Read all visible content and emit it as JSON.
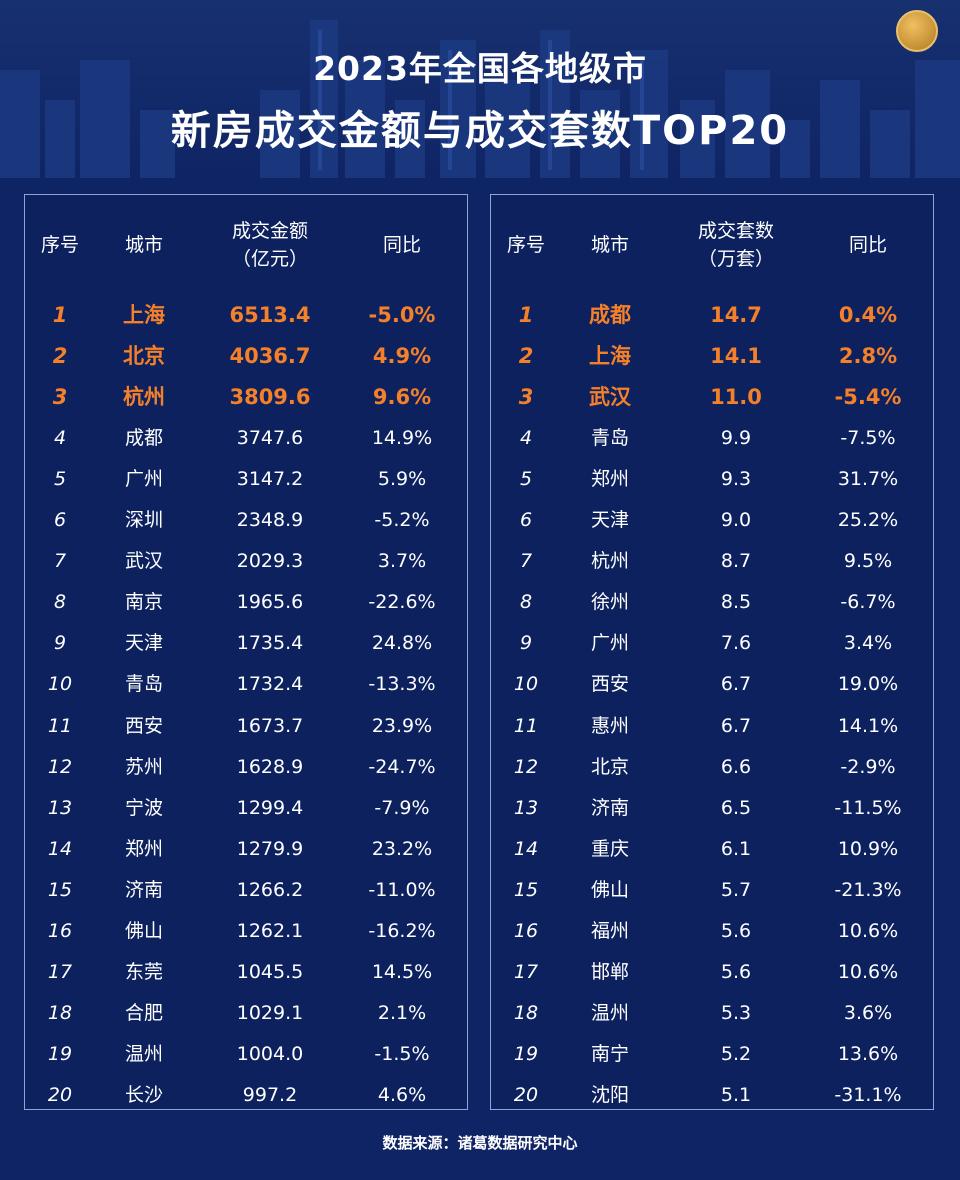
{
  "header": {
    "title_line1": "2023年全国各地级市",
    "title_line2": "新房成交金额与成交套数TOP20"
  },
  "colors": {
    "background": "#0f2464",
    "highlight": "#f5802a",
    "border": "#8fa5d8",
    "text": "#ffffff"
  },
  "left_table": {
    "headers": {
      "rank": "序号",
      "city": "城市",
      "value_line1": "成交金额",
      "value_line2": "（亿元）",
      "yoy": "同比"
    },
    "rows": [
      {
        "rank": "1",
        "city": "上海",
        "value": "6513.4",
        "yoy": "-5.0%"
      },
      {
        "rank": "2",
        "city": "北京",
        "value": "4036.7",
        "yoy": "4.9%"
      },
      {
        "rank": "3",
        "city": "杭州",
        "value": "3809.6",
        "yoy": "9.6%"
      },
      {
        "rank": "4",
        "city": "成都",
        "value": "3747.6",
        "yoy": "14.9%"
      },
      {
        "rank": "5",
        "city": "广州",
        "value": "3147.2",
        "yoy": "5.9%"
      },
      {
        "rank": "6",
        "city": "深圳",
        "value": "2348.9",
        "yoy": "-5.2%"
      },
      {
        "rank": "7",
        "city": "武汉",
        "value": "2029.3",
        "yoy": "3.7%"
      },
      {
        "rank": "8",
        "city": "南京",
        "value": "1965.6",
        "yoy": "-22.6%"
      },
      {
        "rank": "9",
        "city": "天津",
        "value": "1735.4",
        "yoy": "24.8%"
      },
      {
        "rank": "10",
        "city": "青岛",
        "value": "1732.4",
        "yoy": "-13.3%"
      },
      {
        "rank": "11",
        "city": "西安",
        "value": "1673.7",
        "yoy": "23.9%"
      },
      {
        "rank": "12",
        "city": "苏州",
        "value": "1628.9",
        "yoy": "-24.7%"
      },
      {
        "rank": "13",
        "city": "宁波",
        "value": "1299.4",
        "yoy": "-7.9%"
      },
      {
        "rank": "14",
        "city": "郑州",
        "value": "1279.9",
        "yoy": "23.2%"
      },
      {
        "rank": "15",
        "city": "济南",
        "value": "1266.2",
        "yoy": "-11.0%"
      },
      {
        "rank": "16",
        "city": "佛山",
        "value": "1262.1",
        "yoy": "-16.2%"
      },
      {
        "rank": "17",
        "city": "东莞",
        "value": "1045.5",
        "yoy": "14.5%"
      },
      {
        "rank": "18",
        "city": "合肥",
        "value": "1029.1",
        "yoy": "2.1%"
      },
      {
        "rank": "19",
        "city": "温州",
        "value": "1004.0",
        "yoy": "-1.5%"
      },
      {
        "rank": "20",
        "city": "长沙",
        "value": "997.2",
        "yoy": "4.6%"
      }
    ]
  },
  "right_table": {
    "headers": {
      "rank": "序号",
      "city": "城市",
      "value_line1": "成交套数",
      "value_line2": "（万套）",
      "yoy": "同比"
    },
    "rows": [
      {
        "rank": "1",
        "city": "成都",
        "value": "14.7",
        "yoy": "0.4%"
      },
      {
        "rank": "2",
        "city": "上海",
        "value": "14.1",
        "yoy": "2.8%"
      },
      {
        "rank": "3",
        "city": "武汉",
        "value": "11.0",
        "yoy": "-5.4%"
      },
      {
        "rank": "4",
        "city": "青岛",
        "value": "9.9",
        "yoy": "-7.5%"
      },
      {
        "rank": "5",
        "city": "郑州",
        "value": "9.3",
        "yoy": "31.7%"
      },
      {
        "rank": "6",
        "city": "天津",
        "value": "9.0",
        "yoy": "25.2%"
      },
      {
        "rank": "7",
        "city": "杭州",
        "value": "8.7",
        "yoy": "9.5%"
      },
      {
        "rank": "8",
        "city": "徐州",
        "value": "8.5",
        "yoy": "-6.7%"
      },
      {
        "rank": "9",
        "city": "广州",
        "value": "7.6",
        "yoy": "3.4%"
      },
      {
        "rank": "10",
        "city": "西安",
        "value": "6.7",
        "yoy": "19.0%"
      },
      {
        "rank": "11",
        "city": "惠州",
        "value": "6.7",
        "yoy": "14.1%"
      },
      {
        "rank": "12",
        "city": "北京",
        "value": "6.6",
        "yoy": "-2.9%"
      },
      {
        "rank": "13",
        "city": "济南",
        "value": "6.5",
        "yoy": "-11.5%"
      },
      {
        "rank": "14",
        "city": "重庆",
        "value": "6.1",
        "yoy": "10.9%"
      },
      {
        "rank": "15",
        "city": "佛山",
        "value": "5.7",
        "yoy": "-21.3%"
      },
      {
        "rank": "16",
        "city": "福州",
        "value": "5.6",
        "yoy": "10.6%"
      },
      {
        "rank": "17",
        "city": "邯郸",
        "value": "5.6",
        "yoy": "10.6%"
      },
      {
        "rank": "18",
        "city": "温州",
        "value": "5.3",
        "yoy": "3.6%"
      },
      {
        "rank": "19",
        "city": "南宁",
        "value": "5.2",
        "yoy": "13.6%"
      },
      {
        "rank": "20",
        "city": "沈阳",
        "value": "5.1",
        "yoy": "-31.1%"
      }
    ]
  },
  "chart_data": [
    {
      "type": "table",
      "columns": [
        "序号",
        "城市",
        "成交金额（亿元）",
        "同比"
      ],
      "categories": [
        "上海",
        "北京",
        "杭州",
        "成都",
        "广州",
        "深圳",
        "武汉",
        "南京",
        "天津",
        "青岛",
        "西安",
        "苏州",
        "宁波",
        "郑州",
        "济南",
        "佛山",
        "东莞",
        "合肥",
        "温州",
        "长沙"
      ],
      "series": [
        {
          "name": "成交金额（亿元）",
          "values": [
            6513.4,
            4036.7,
            3809.6,
            3747.6,
            3147.2,
            2348.9,
            2029.3,
            1965.6,
            1735.4,
            1732.4,
            1673.7,
            1628.9,
            1299.4,
            1279.9,
            1266.2,
            1262.1,
            1045.5,
            1029.1,
            1004.0,
            997.2
          ]
        },
        {
          "name": "同比",
          "values": [
            -5.0,
            4.9,
            9.6,
            14.9,
            5.9,
            -5.2,
            3.7,
            -22.6,
            24.8,
            -13.3,
            23.9,
            -24.7,
            -7.9,
            23.2,
            -11.0,
            -16.2,
            14.5,
            2.1,
            -1.5,
            4.6
          ]
        }
      ]
    },
    {
      "type": "table",
      "columns": [
        "序号",
        "城市",
        "成交套数（万套）",
        "同比"
      ],
      "categories": [
        "成都",
        "上海",
        "武汉",
        "青岛",
        "郑州",
        "天津",
        "杭州",
        "徐州",
        "广州",
        "西安",
        "惠州",
        "北京",
        "济南",
        "重庆",
        "佛山",
        "福州",
        "邯郸",
        "温州",
        "南宁",
        "沈阳"
      ],
      "series": [
        {
          "name": "成交套数（万套）",
          "values": [
            14.7,
            14.1,
            11.0,
            9.9,
            9.3,
            9.0,
            8.7,
            8.5,
            7.6,
            6.7,
            6.7,
            6.6,
            6.5,
            6.1,
            5.7,
            5.6,
            5.6,
            5.3,
            5.2,
            5.1
          ]
        },
        {
          "name": "同比",
          "values": [
            0.4,
            2.8,
            -5.4,
            -7.5,
            31.7,
            25.2,
            9.5,
            -6.7,
            3.4,
            19.0,
            14.1,
            -2.9,
            -11.5,
            10.9,
            -21.3,
            10.6,
            10.6,
            3.6,
            13.6,
            -31.1
          ]
        }
      ]
    }
  ],
  "footer": {
    "source": "数据来源：诸葛数据研究中心"
  }
}
